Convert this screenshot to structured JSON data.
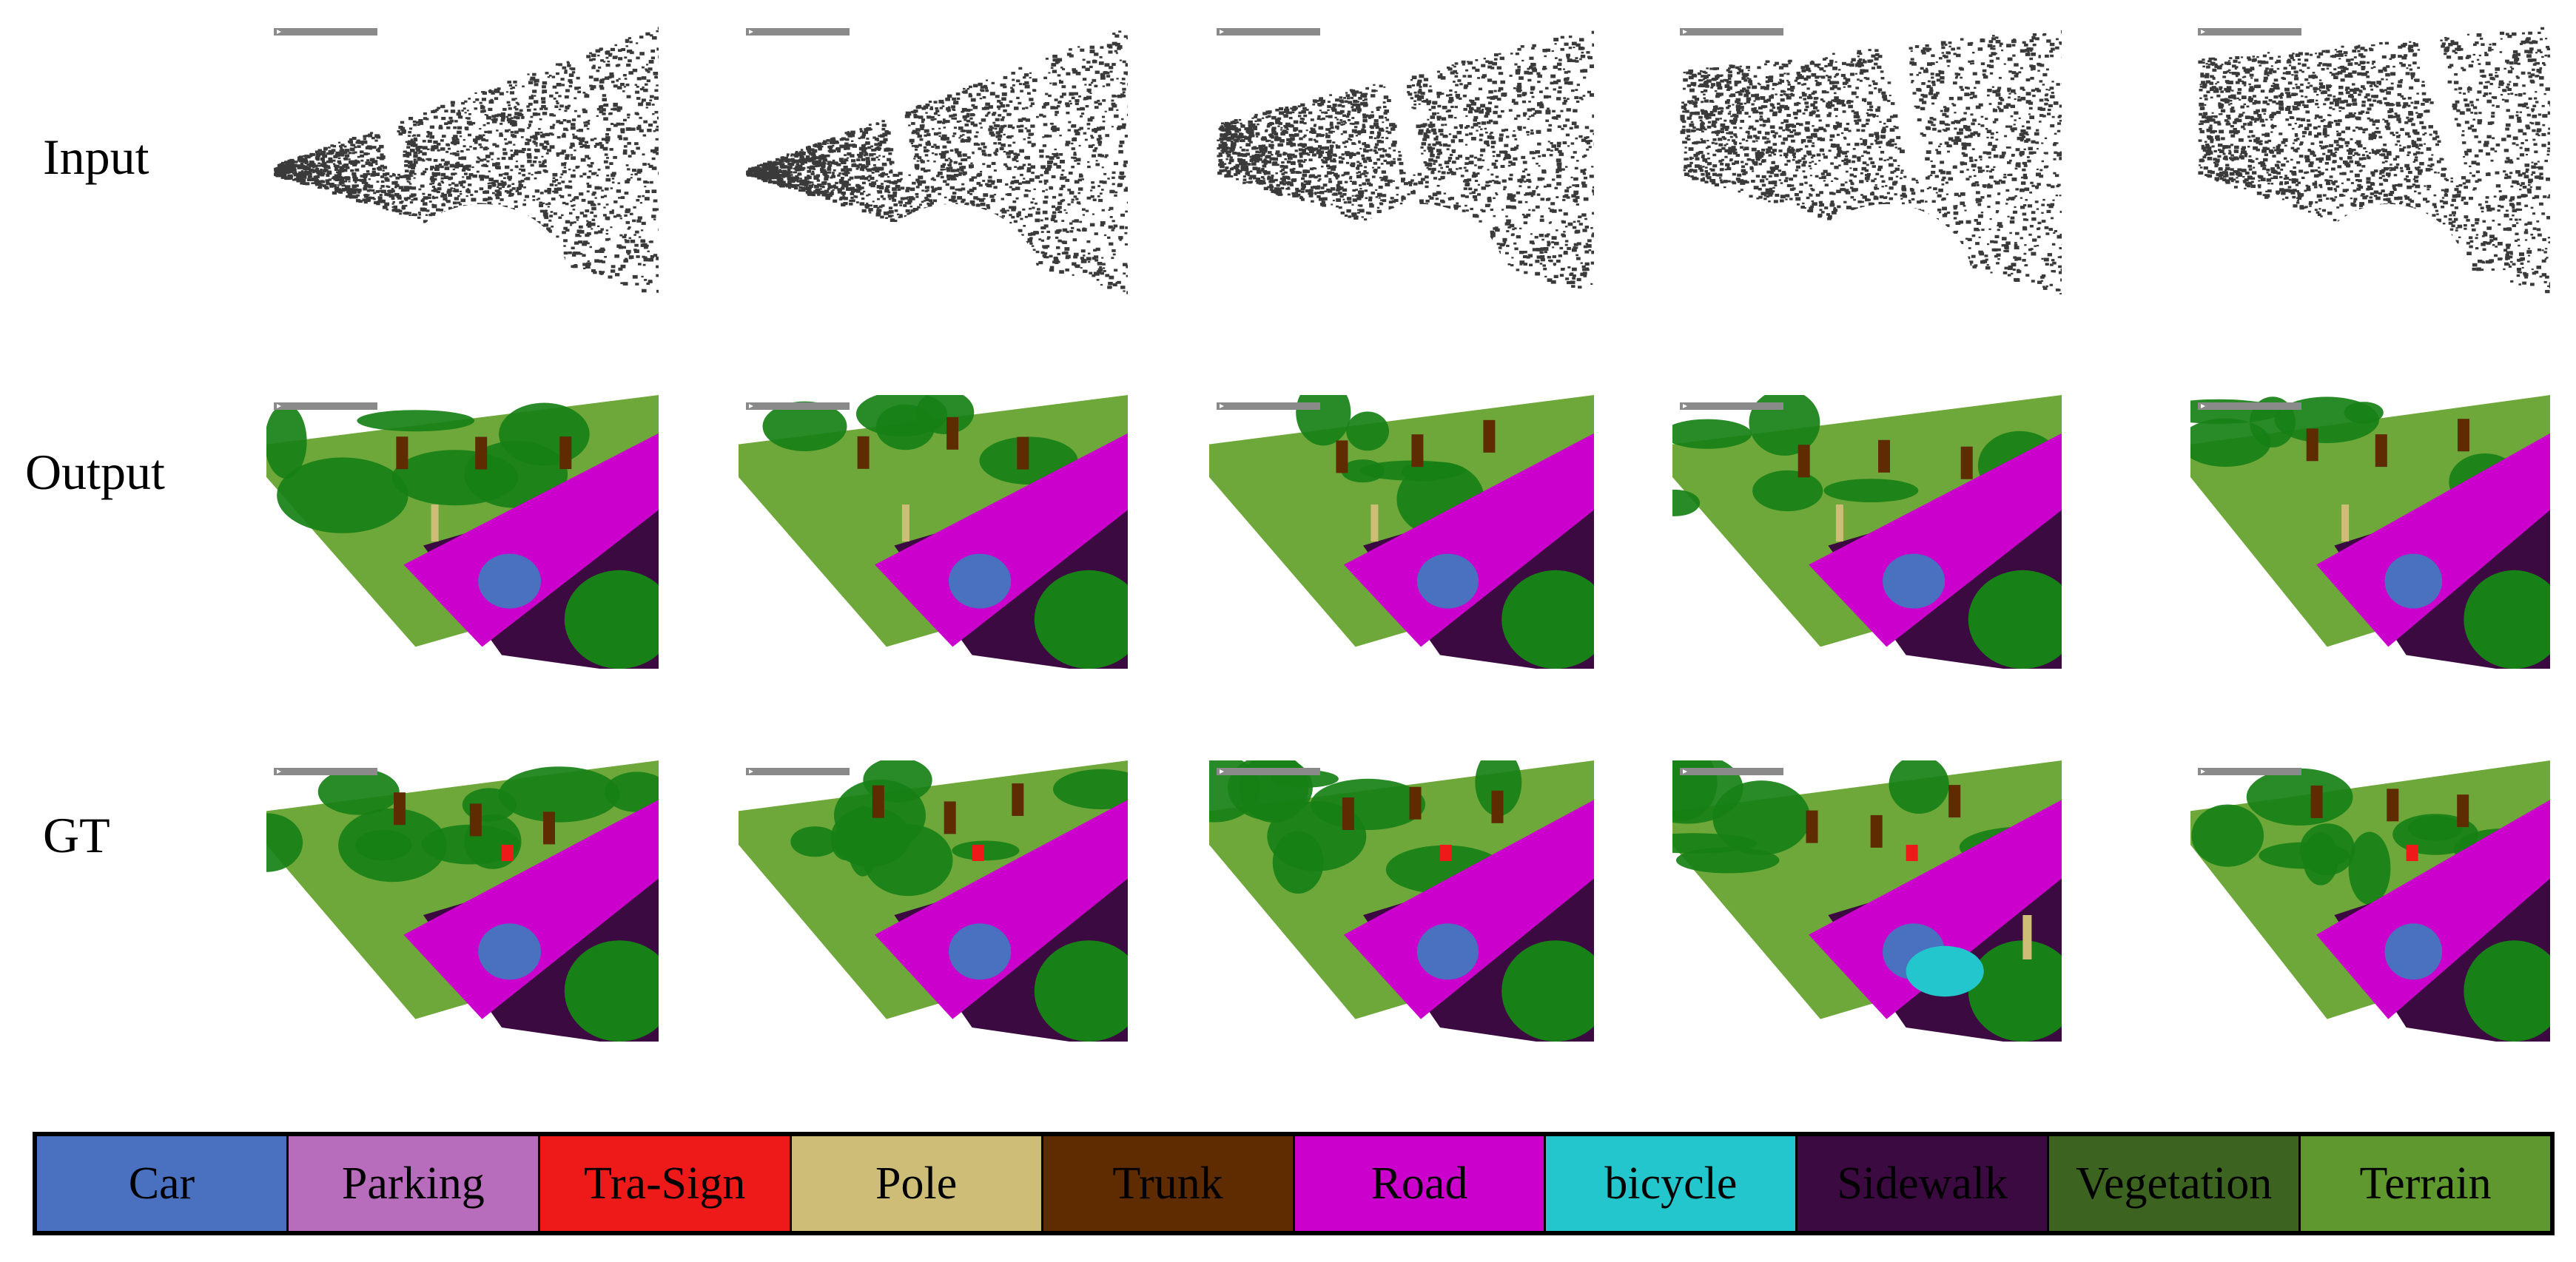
{
  "rows": [
    {
      "label": "Input"
    },
    {
      "label": "Output"
    },
    {
      "label": "GT"
    }
  ],
  "panel_toolbar_icon": "play-triangle-icon",
  "legend": [
    {
      "label": "Car",
      "color": "#4a70c0"
    },
    {
      "label": "Parking",
      "color": "#b86cbc"
    },
    {
      "label": "Tra-Sign",
      "color": "#ee1a1a"
    },
    {
      "label": "Pole",
      "color": "#cdbd76"
    },
    {
      "label": "Trunk",
      "color": "#5e2c00"
    },
    {
      "label": "Road",
      "color": "#cc00cc"
    },
    {
      "label": "bicycle",
      "color": "#22c6cc"
    },
    {
      "label": "Sidewalk",
      "color": "#3b0a40"
    },
    {
      "label": "Vegetation",
      "color": "#3c6420"
    },
    {
      "label": "Terrain",
      "color": "#5f982e"
    }
  ],
  "colors": {
    "point_cloud": "#3a3a3a",
    "vegetation_voxel": "#178016",
    "terrain_voxel": "#6ea83a"
  }
}
